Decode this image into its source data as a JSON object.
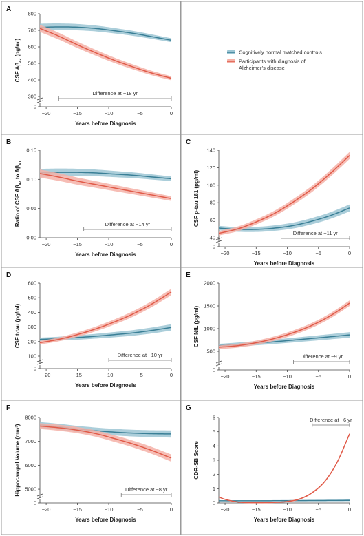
{
  "colors": {
    "control": "#3a7f96",
    "control_band": "#9cc6d4",
    "ad": "#e05a48",
    "ad_band": "#f4b2a8"
  },
  "legend": [
    {
      "name": "Cognitively normal matched controls",
      "series": "control"
    },
    {
      "name": "Participants with diagnosis of Alzheimer’s disease",
      "series": "ad"
    }
  ],
  "chart_data": [
    {
      "panel": "A",
      "type": "line",
      "xlabel": "Years before Diagnosis",
      "ylabel": "CSF Aβ42 (pg/ml)",
      "xlim": [
        -21,
        0
      ],
      "ylim": [
        300,
        800
      ],
      "xticks": [
        -20,
        -15,
        -10,
        -5,
        0
      ],
      "yticks": [
        300,
        400,
        500,
        600,
        700,
        800
      ],
      "xtick_labels": [
        "−20",
        "−15",
        "−10",
        "−5",
        "0"
      ],
      "ytick_labels": [
        "300",
        "400",
        "500",
        "600",
        "700",
        "800"
      ],
      "axis_break": true,
      "zero_label": "0",
      "annotation": {
        "text": "Difference at −18 yr",
        "from": -18,
        "to": 0
      },
      "band_width": [
        22,
        12
      ],
      "series": [
        {
          "name": "Cognitively normal matched controls",
          "key": "control",
          "x": [
            -21,
            -18,
            -15,
            -12,
            -9,
            -6,
            -3,
            0
          ],
          "y": [
            718,
            721,
            719,
            711,
            697,
            681,
            661,
            640
          ]
        },
        {
          "name": "Participants with diagnosis of Alzheimer’s disease",
          "key": "ad",
          "x": [
            -21,
            -18,
            -15,
            -12,
            -9,
            -6,
            -3,
            0
          ],
          "y": [
            712,
            665,
            612,
            563,
            517,
            477,
            440,
            410
          ]
        }
      ]
    },
    {
      "panel": "B",
      "type": "line",
      "xlabel": "Years before Diagnosis",
      "ylabel": "Ratio of CSF Aβ42 to Aβ40",
      "xlim": [
        -21,
        0
      ],
      "ylim": [
        0.0,
        0.15
      ],
      "xticks": [
        -20,
        -15,
        -10,
        -5,
        0
      ],
      "yticks": [
        0.0,
        0.05,
        0.1,
        0.15
      ],
      "xtick_labels": [
        "−20",
        "−15",
        "−10",
        "−5",
        "0"
      ],
      "ytick_labels": [
        "0.00",
        "0.05",
        "0.10",
        "0.15"
      ],
      "axis_break": false,
      "annotation": {
        "text": "Difference at −14 yr",
        "from": -14,
        "to": 0
      },
      "band_width": [
        0.007,
        0.004
      ],
      "series": [
        {
          "name": "Cognitively normal matched controls",
          "key": "control",
          "x": [
            -21,
            -18,
            -15,
            -12,
            -9,
            -6,
            -3,
            0
          ],
          "y": [
            0.111,
            0.112,
            0.112,
            0.111,
            0.109,
            0.107,
            0.104,
            0.101
          ]
        },
        {
          "name": "Participants with diagnosis of Alzheimer’s disease",
          "key": "ad",
          "x": [
            -21,
            -18,
            -15,
            -12,
            -9,
            -6,
            -3,
            0
          ],
          "y": [
            0.11,
            0.104,
            0.097,
            0.091,
            0.085,
            0.079,
            0.073,
            0.067
          ]
        }
      ]
    },
    {
      "panel": "C",
      "type": "line",
      "xlabel": "Years before Diagnosis",
      "ylabel": "CSF p-tau 181 (pg/ml)",
      "xlim": [
        -21,
        0
      ],
      "ylim": [
        40,
        140
      ],
      "xticks": [
        -20,
        -15,
        -10,
        -5,
        0
      ],
      "yticks": [
        40,
        60,
        80,
        100,
        120,
        140
      ],
      "xtick_labels": [
        "−20",
        "−15",
        "−10",
        "−5",
        "0"
      ],
      "ytick_labels": [
        "40",
        "60",
        "80",
        "100",
        "120",
        "140"
      ],
      "axis_break": true,
      "zero_label": "0",
      "annotation": {
        "text": "Difference at −11 yr",
        "from": -11,
        "to": 0
      },
      "band_width": [
        2.5,
        4
      ],
      "series": [
        {
          "name": "Cognitively normal matched controls",
          "key": "control",
          "x": [
            -21,
            -18,
            -15,
            -12,
            -9,
            -6,
            -3,
            0
          ],
          "y": [
            51,
            49.5,
            49.5,
            51,
            54,
            59,
            65.5,
            74
          ]
        },
        {
          "name": "Participants with diagnosis of Alzheimer’s disease",
          "key": "ad",
          "x": [
            -21,
            -18,
            -15,
            -12,
            -9,
            -6,
            -3,
            0
          ],
          "y": [
            45,
            50,
            58,
            68,
            81,
            96,
            114,
            134
          ]
        }
      ]
    },
    {
      "panel": "D",
      "type": "line",
      "xlabel": "Years before Diagnosis",
      "ylabel": "CSF t-tau (pg/ml)",
      "xlim": [
        -21,
        0
      ],
      "ylim": [
        100,
        600
      ],
      "xticks": [
        -20,
        -15,
        -10,
        -5,
        0
      ],
      "yticks": [
        100,
        200,
        300,
        400,
        500,
        600
      ],
      "xtick_labels": [
        "−20",
        "−15",
        "−10",
        "−5",
        "0"
      ],
      "ytick_labels": [
        "100",
        "200",
        "300",
        "400",
        "500",
        "600"
      ],
      "axis_break": true,
      "zero_label": "0",
      "annotation": {
        "text": "Difference at −10 yr",
        "from": -10,
        "to": 0
      },
      "band_width": [
        12,
        22
      ],
      "series": [
        {
          "name": "Cognitively normal matched controls",
          "key": "control",
          "x": [
            -21,
            -18,
            -15,
            -12,
            -9,
            -6,
            -3,
            0
          ],
          "y": [
            215,
            220,
            228,
            237,
            248,
            260,
            277,
            297
          ]
        },
        {
          "name": "Participants with diagnosis of Alzheimer’s disease",
          "key": "ad",
          "x": [
            -21,
            -18,
            -15,
            -12,
            -9,
            -6,
            -3,
            0
          ],
          "y": [
            192,
            215,
            248,
            288,
            336,
            392,
            460,
            540
          ]
        }
      ]
    },
    {
      "panel": "E",
      "type": "line",
      "xlabel": "Years before Diagnosis",
      "ylabel": "CSF NfL (pg/ml)",
      "xlim": [
        -21,
        0
      ],
      "ylim": [
        500,
        2000
      ],
      "xticks": [
        -20,
        -15,
        -10,
        -5,
        0
      ],
      "yticks": [
        500,
        1000,
        1500,
        2000
      ],
      "xtick_labels": [
        "−20",
        "−15",
        "−10",
        "−5",
        "0"
      ],
      "ytick_labels": [
        "500",
        "1000",
        "1500",
        "2000"
      ],
      "axis_break": true,
      "zero_label": "0",
      "annotation": {
        "text": "Difference at −9 yr",
        "from": -9,
        "to": 0
      },
      "band_width": [
        40,
        60
      ],
      "series": [
        {
          "name": "Cognitively normal matched controls",
          "key": "control",
          "x": [
            -21,
            -18,
            -15,
            -12,
            -9,
            -6,
            -3,
            0
          ],
          "y": [
            625,
            650,
            680,
            712,
            748,
            785,
            823,
            862
          ]
        },
        {
          "name": "Participants with diagnosis of Alzheimer’s disease",
          "key": "ad",
          "x": [
            -21,
            -18,
            -15,
            -12,
            -9,
            -6,
            -3,
            0
          ],
          "y": [
            590,
            625,
            690,
            785,
            912,
            1075,
            1290,
            1560
          ]
        }
      ]
    },
    {
      "panel": "F",
      "type": "line",
      "xlabel": "Years before Diagnosis",
      "ylabel": "Hippocampal Volume (mm³)",
      "xlim": [
        -21,
        0
      ],
      "ylim": [
        4800,
        8000
      ],
      "xticks": [
        -20,
        -15,
        -10,
        -5,
        0
      ],
      "yticks": [
        5000,
        6000,
        7000,
        8000
      ],
      "xtick_labels": [
        "−20",
        "−15",
        "−10",
        "−5",
        "0"
      ],
      "ytick_labels": [
        "5000",
        "6000",
        "7000",
        "8000"
      ],
      "axis_break": true,
      "zero_label": "0",
      "annotation": {
        "text": "Difference at −8 yr",
        "from": -8,
        "to": 0
      },
      "band_width": [
        120,
        150
      ],
      "series": [
        {
          "name": "Cognitively normal matched controls",
          "key": "control",
          "x": [
            -21,
            -18,
            -15,
            -12,
            -9,
            -6,
            -3,
            0
          ],
          "y": [
            7690,
            7610,
            7520,
            7445,
            7385,
            7345,
            7320,
            7310
          ]
        },
        {
          "name": "Participants with diagnosis of Alzheimer’s disease",
          "key": "ad",
          "x": [
            -21,
            -18,
            -15,
            -12,
            -9,
            -6,
            -3,
            0
          ],
          "y": [
            7640,
            7570,
            7470,
            7320,
            7110,
            6880,
            6610,
            6300
          ]
        }
      ]
    },
    {
      "panel": "G",
      "type": "line",
      "xlabel": "Years before Diagnosis",
      "ylabel": "CDR-SB Score",
      "xlim": [
        -21,
        0
      ],
      "ylim": [
        0,
        6
      ],
      "xticks": [
        -20,
        -15,
        -10,
        -5,
        0
      ],
      "yticks": [
        0,
        1,
        2,
        3,
        4,
        5,
        6
      ],
      "xtick_labels": [
        "−20",
        "−15",
        "−10",
        "−5",
        "0"
      ],
      "ytick_labels": [
        "0",
        "1",
        "2",
        "3",
        "4",
        "5",
        "6"
      ],
      "axis_break": false,
      "annotation": {
        "text": "Difference at −6 yr",
        "from": -6,
        "to": 0,
        "top": true
      },
      "band_width": [
        0.03,
        0.06
      ],
      "series": [
        {
          "name": "Cognitively normal matched controls",
          "key": "control",
          "x": [
            -21,
            -15,
            -10,
            -5,
            0
          ],
          "y": [
            0.15,
            0.15,
            0.16,
            0.17,
            0.18
          ]
        },
        {
          "name": "Participants with diagnosis of Alzheimer’s disease",
          "key": "ad",
          "x": [
            -21,
            -20,
            -18,
            -16,
            -14,
            -12,
            -10,
            -8,
            -6,
            -4,
            -2,
            0
          ],
          "y": [
            0.42,
            0.25,
            0.07,
            0.02,
            0.02,
            0.04,
            0.1,
            0.28,
            0.72,
            1.5,
            2.85,
            4.85
          ]
        }
      ]
    }
  ]
}
